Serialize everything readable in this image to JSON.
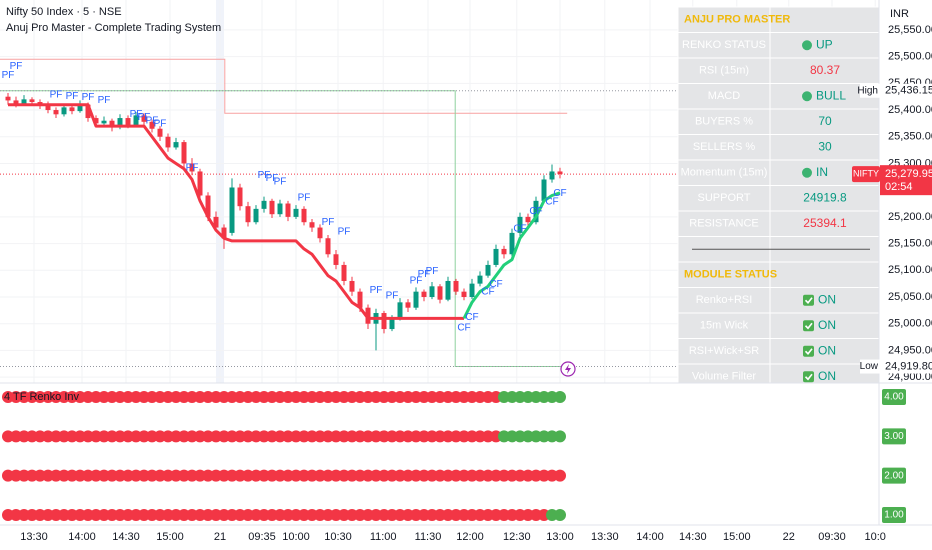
{
  "chart_data": {
    "type": "candlestick",
    "title": "Nifty 50 Index · 5 · NSE",
    "subtitle": "Anuj Pro Master - Complete Trading System",
    "currency": "INR",
    "up_color": "#089981",
    "down_color": "#f23645",
    "grid": true,
    "ylim": [
      24889,
      25606
    ],
    "xlim": [
      -1,
      115.5
    ],
    "yticks": [
      {
        "value": 25550,
        "label": "25,550.00"
      },
      {
        "value": 25500,
        "label": "25,500.00"
      },
      {
        "value": 25450,
        "label": "25,450.00"
      },
      {
        "value": 25400,
        "label": "25,400.00"
      },
      {
        "value": 25350,
        "label": "25,350.00"
      },
      {
        "value": 25300,
        "label": "25,300.00"
      },
      {
        "value": 25200,
        "label": "25,200.00"
      },
      {
        "value": 25150,
        "label": "25,150.00"
      },
      {
        "value": 25100,
        "label": "25,100.00"
      },
      {
        "value": 25050,
        "label": "25,050.00"
      },
      {
        "value": 25000,
        "label": "25,000.00"
      },
      {
        "value": 24950,
        "label": "24,950.00"
      },
      {
        "value": 24900,
        "label": "24,900.00"
      }
    ],
    "xticks": [
      {
        "value": 3.25,
        "label": "13:30"
      },
      {
        "value": 9.25,
        "label": "14:00"
      },
      {
        "value": 14.75,
        "label": "14:30"
      },
      {
        "value": 20.25,
        "label": "15:00"
      },
      {
        "value": 26.5,
        "label": "21"
      },
      {
        "value": 31.75,
        "label": "09:35"
      },
      {
        "value": 36,
        "label": "10:00"
      },
      {
        "value": 41.25,
        "label": "10:30"
      },
      {
        "value": 46.9,
        "label": "11:00"
      },
      {
        "value": 52.5,
        "label": "11:30"
      },
      {
        "value": 57.75,
        "label": "12:00"
      },
      {
        "value": 63.6,
        "label": "12:30"
      },
      {
        "value": 69,
        "label": "13:00"
      },
      {
        "value": 74.6,
        "label": "13:30"
      },
      {
        "value": 80.25,
        "label": "14:00"
      },
      {
        "value": 85.6,
        "label": "14:30"
      },
      {
        "value": 91.1,
        "label": "15:00"
      },
      {
        "value": 97.6,
        "label": "22"
      },
      {
        "value": 103,
        "label": "09:30"
      },
      {
        "value": 108.4,
        "label": "10:0"
      }
    ],
    "day_break": 26.5,
    "ohlc": [
      [
        25425,
        25432,
        25410,
        25418
      ],
      [
        25418,
        25425,
        25405,
        25412
      ],
      [
        25412,
        25428,
        25408,
        25420
      ],
      [
        25420,
        25424,
        25408,
        25415
      ],
      [
        25415,
        25420,
        25402,
        25410
      ],
      [
        25410,
        25416,
        25394,
        25400
      ],
      [
        25400,
        25405,
        25385,
        25392
      ],
      [
        25392,
        25410,
        25388,
        25405
      ],
      [
        25405,
        25412,
        25392,
        25398
      ],
      [
        25398,
        25418,
        25395,
        25410
      ],
      [
        25410,
        25414,
        25378,
        25385
      ],
      [
        25385,
        25390,
        25368,
        25375
      ],
      [
        25375,
        25388,
        25370,
        25380
      ],
      [
        25380,
        25384,
        25360,
        25368
      ],
      [
        25368,
        25392,
        25364,
        25385
      ],
      [
        25385,
        25390,
        25366,
        25372
      ],
      [
        25372,
        25396,
        25370,
        25390
      ],
      [
        25390,
        25394,
        25372,
        25378
      ],
      [
        25378,
        25382,
        25358,
        25365
      ],
      [
        25365,
        25370,
        25342,
        25350
      ],
      [
        25350,
        25356,
        25322,
        25330
      ],
      [
        25330,
        25348,
        25326,
        25340
      ],
      [
        25340,
        25344,
        25292,
        25300
      ],
      [
        25300,
        25310,
        25278,
        25285
      ],
      [
        25285,
        25290,
        25232,
        25240
      ],
      [
        25240,
        25246,
        25192,
        25200
      ],
      [
        25200,
        25210,
        25172,
        25180
      ],
      [
        25180,
        25186,
        25140,
        25160
      ],
      [
        25170,
        25272,
        25165,
        25255
      ],
      [
        25255,
        25262,
        25212,
        25220
      ],
      [
        25220,
        25228,
        25182,
        25190
      ],
      [
        25190,
        25222,
        25186,
        25215
      ],
      [
        25215,
        25238,
        25208,
        25230
      ],
      [
        25230,
        25234,
        25198,
        25205
      ],
      [
        25205,
        25232,
        25200,
        25225
      ],
      [
        25225,
        25230,
        25192,
        25200
      ],
      [
        25200,
        25222,
        25196,
        25215
      ],
      [
        25215,
        25220,
        25184,
        25190
      ],
      [
        25190,
        25196,
        25172,
        25180
      ],
      [
        25180,
        25186,
        25152,
        25160
      ],
      [
        25160,
        25166,
        25124,
        25130
      ],
      [
        25130,
        25138,
        25102,
        25110
      ],
      [
        25110,
        25116,
        25072,
        25080
      ],
      [
        25080,
        25088,
        25052,
        25060
      ],
      [
        25060,
        25066,
        25022,
        25030
      ],
      [
        25030,
        25036,
        24990,
        25000
      ],
      [
        25000,
        25028,
        24950,
        25020
      ],
      [
        25020,
        25024,
        24982,
        24990
      ],
      [
        24990,
        25016,
        24986,
        25010
      ],
      [
        25010,
        25048,
        25006,
        25040
      ],
      [
        25040,
        25046,
        25022,
        25030
      ],
      [
        25030,
        25068,
        25026,
        25060
      ],
      [
        25060,
        25064,
        25042,
        25050
      ],
      [
        25050,
        25078,
        25046,
        25070
      ],
      [
        25070,
        25074,
        25038,
        25045
      ],
      [
        25045,
        25088,
        25042,
        25080
      ],
      [
        25080,
        25084,
        25054,
        25060
      ],
      [
        25060,
        25066,
        25044,
        25050
      ],
      [
        25050,
        25084,
        25046,
        25075
      ],
      [
        25075,
        25098,
        25070,
        25090
      ],
      [
        25090,
        25118,
        25086,
        25110
      ],
      [
        25110,
        25148,
        25106,
        25140
      ],
      [
        25140,
        25146,
        25122,
        25130
      ],
      [
        25130,
        25178,
        25126,
        25170
      ],
      [
        25170,
        25208,
        25164,
        25200
      ],
      [
        25200,
        25206,
        25182,
        25190
      ],
      [
        25190,
        25238,
        25186,
        25230
      ],
      [
        25230,
        25278,
        25226,
        25270
      ],
      [
        25270,
        25298,
        25264,
        25285
      ],
      [
        25285,
        25292,
        25272,
        25280
      ]
    ],
    "trend": [
      {
        "color": "#f23645",
        "values": [
          25410,
          25410,
          25410,
          25410,
          25410,
          25410,
          25410,
          25410,
          25410,
          25410,
          25410,
          25370,
          25370,
          25370,
          25370,
          25370,
          25370,
          25370,
          25350,
          25330,
          25310,
          25300,
          25290,
          25270,
          25230,
          25200,
          25175,
          25160,
          25155,
          25155,
          25155,
          25155,
          25155,
          25155,
          25155,
          25155,
          25155,
          25140,
          25130,
          25110,
          25090,
          25080,
          25060,
          25040,
          25030,
          25010,
          25010,
          25010,
          25010,
          25010,
          25010,
          25010,
          25010,
          25010,
          25010,
          25010,
          25010,
          25010,
          null,
          null,
          null,
          null,
          null,
          null,
          null,
          null,
          null,
          null,
          null,
          null
        ]
      },
      {
        "color": "#22d07a",
        "values": [
          null,
          null,
          null,
          null,
          null,
          null,
          null,
          null,
          null,
          null,
          null,
          null,
          null,
          null,
          null,
          null,
          null,
          null,
          null,
          null,
          null,
          null,
          null,
          null,
          null,
          null,
          null,
          null,
          null,
          null,
          null,
          null,
          null,
          null,
          null,
          null,
          null,
          null,
          null,
          null,
          null,
          null,
          null,
          null,
          null,
          null,
          null,
          null,
          null,
          null,
          null,
          null,
          null,
          null,
          null,
          null,
          null,
          25010,
          25040,
          25060,
          25070,
          25090,
          25110,
          25120,
          25160,
          25180,
          25200,
          25230,
          25240,
          25245
        ]
      }
    ],
    "levels": [
      {
        "color": "#f7a1a1",
        "x": [
          -1,
          27.1,
          27.1,
          69.9
        ],
        "values": [
          25495,
          25495,
          25394.1,
          25394.1
        ]
      },
      {
        "color": "#8fd19e",
        "x": [
          -1,
          55.9,
          55.9,
          69.9
        ],
        "values": [
          25436,
          25436,
          24919.8,
          24919.8
        ]
      }
    ],
    "high": {
      "label": "High",
      "value": 25436.15,
      "value_label": "25,436.15"
    },
    "low": {
      "label": "Low",
      "value": 24919.8,
      "value_label": "24,919.80"
    },
    "last": {
      "symbol": "NIFTY",
      "value": 25279.95,
      "value_label": "25,279.95",
      "countdown": "02:54"
    },
    "annotations": [
      {
        "text": "PF",
        "i": 0,
        "price": 25465
      },
      {
        "text": "PF",
        "i": 1,
        "price": 25482
      },
      {
        "text": "PF",
        "i": 6,
        "price": 25428
      },
      {
        "text": "PF",
        "i": 8,
        "price": 25426
      },
      {
        "text": "PF",
        "i": 10,
        "price": 25424
      },
      {
        "text": "PF",
        "i": 12,
        "price": 25418
      },
      {
        "text": "PF",
        "i": 16,
        "price": 25392
      },
      {
        "text": "PF",
        "i": 17,
        "price": 25386
      },
      {
        "text": "PF",
        "i": 18,
        "price": 25380
      },
      {
        "text": "PF",
        "i": 19,
        "price": 25374
      },
      {
        "text": "PF",
        "i": 23,
        "price": 25292
      },
      {
        "text": "PF",
        "i": 32,
        "price": 25278
      },
      {
        "text": "PF",
        "i": 33,
        "price": 25272
      },
      {
        "text": "PF",
        "i": 34,
        "price": 25266
      },
      {
        "text": "PF",
        "i": 37,
        "price": 25236
      },
      {
        "text": "PF",
        "i": 40,
        "price": 25190
      },
      {
        "text": "PF",
        "i": 42,
        "price": 25172
      },
      {
        "text": "PF",
        "i": 46,
        "price": 25062
      },
      {
        "text": "PF",
        "i": 48,
        "price": 25052
      },
      {
        "text": "PF",
        "i": 51,
        "price": 25080
      },
      {
        "text": "PF",
        "i": 52,
        "price": 25092
      },
      {
        "text": "PF",
        "i": 53,
        "price": 25098
      },
      {
        "text": "CF",
        "i": 57,
        "price": 24992
      },
      {
        "text": "CF",
        "i": 58,
        "price": 25012
      },
      {
        "text": "CF",
        "i": 60,
        "price": 25060
      },
      {
        "text": "CF",
        "i": 61,
        "price": 25074
      },
      {
        "text": "CF",
        "i": 64,
        "price": 25178
      },
      {
        "text": "CF",
        "i": 66,
        "price": 25210
      },
      {
        "text": "CF",
        "i": 68,
        "price": 25228
      },
      {
        "text": "CF",
        "i": 69,
        "price": 25244
      }
    ],
    "info_table": {
      "title": "ANJU PRO MASTER",
      "rows": [
        {
          "label": "RENKO STATUS",
          "value": "UP",
          "icon": "circle",
          "color": "#089981"
        },
        {
          "label": "RSI (15m)",
          "value": "80.37",
          "color": "#f23645"
        },
        {
          "label": "MACD",
          "value": "BULL",
          "icon": "circle",
          "color": "#089981"
        },
        {
          "label": "BUYERS %",
          "value": "70",
          "color": "#089981"
        },
        {
          "label": "SELLERS %",
          "value": "30",
          "color": "#089981"
        },
        {
          "label": "Momentum (15m)",
          "value": "IN",
          "icon": "circle",
          "color": "#089981"
        },
        {
          "label": "SUPPORT",
          "value": "24919.8",
          "color": "#089981"
        },
        {
          "label": "RESISTANCE",
          "value": "25394.1",
          "color": "#f23645"
        }
      ],
      "module_title": "MODULE STATUS",
      "module_rows": [
        {
          "label": "Renko+RSI",
          "value": "ON",
          "icon": "check",
          "color": "#089981"
        },
        {
          "label": "15m Wick",
          "value": "ON",
          "icon": "check",
          "color": "#089981"
        },
        {
          "label": "RSI+Wick+SR",
          "value": "ON",
          "icon": "check",
          "color": "#089981"
        },
        {
          "label": "Volume Filter",
          "value": "ON",
          "icon": "check",
          "color": "#089981"
        }
      ]
    },
    "indicator": {
      "title": "4 TF Renko Inv",
      "rows": [
        {
          "value": 4,
          "label": "4.00",
          "segments": [
            {
              "color": "#f23645",
              "count": 62
            },
            {
              "color": "#4caf50",
              "count": 8
            }
          ]
        },
        {
          "value": 3,
          "label": "3.00",
          "segments": [
            {
              "color": "#f23645",
              "count": 62
            },
            {
              "color": "#4caf50",
              "count": 8
            }
          ]
        },
        {
          "value": 2,
          "label": "2.00",
          "segments": [
            {
              "color": "#f23645",
              "count": 70
            }
          ]
        },
        {
          "value": 1,
          "label": "1.00",
          "segments": [
            {
              "color": "#f23645",
              "count": 68
            },
            {
              "color": "#4caf50",
              "count": 2
            }
          ]
        }
      ]
    }
  }
}
